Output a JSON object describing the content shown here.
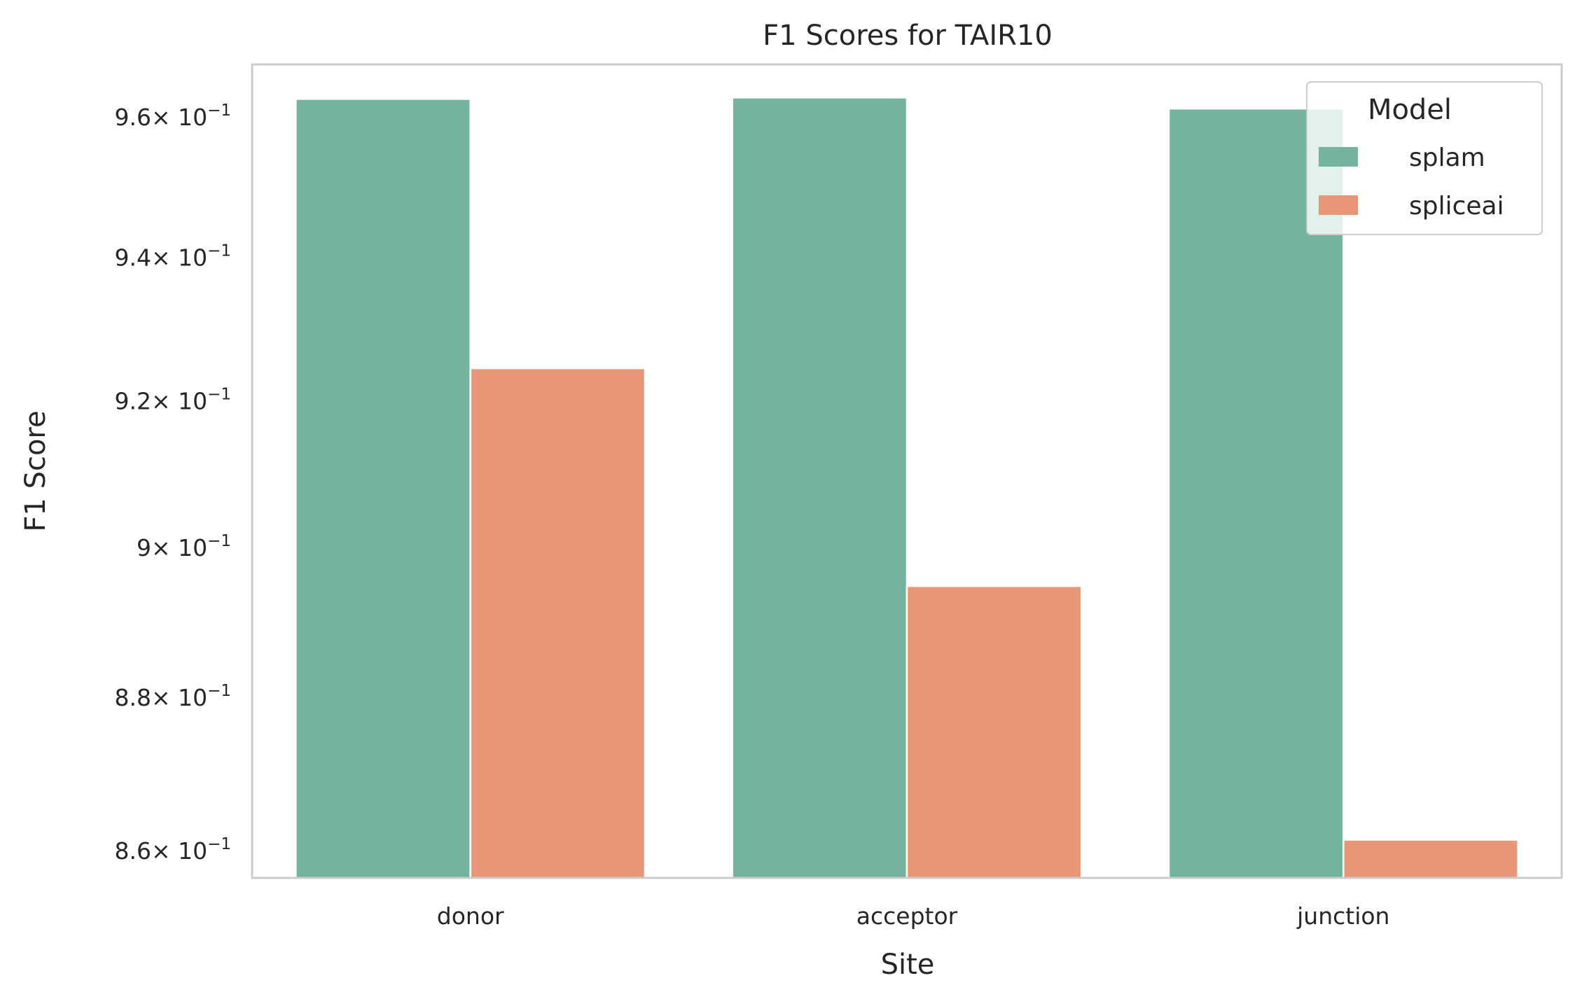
{
  "chart_data": {
    "type": "bar",
    "title": "F1 Scores for TAIR10",
    "xlabel": "Site",
    "ylabel": "F1 Score",
    "yscale": "log",
    "ylim": [
      0.8565,
      0.9676
    ],
    "grid": false,
    "categories": [
      "donor",
      "acceptor",
      "junction"
    ],
    "series": [
      {
        "name": "splam",
        "color": "#74b49f",
        "values": [
          0.9626,
          0.9628,
          0.9612
        ]
      },
      {
        "name": "spliceai",
        "color": "#e89776",
        "values": [
          0.9245,
          0.8948,
          0.8614
        ]
      }
    ],
    "y_ticks": [
      {
        "value": 0.86,
        "mantissa": "8.6"
      },
      {
        "value": 0.88,
        "mantissa": "8.8"
      },
      {
        "value": 0.9,
        "mantissa": "9"
      },
      {
        "value": 0.92,
        "mantissa": "9.2"
      },
      {
        "value": 0.94,
        "mantissa": "9.4"
      },
      {
        "value": 0.96,
        "mantissa": "9.6"
      }
    ],
    "y_tick_multiplier": "× 10",
    "y_tick_exponent": "−1",
    "legend": {
      "title": "Model",
      "position": "upper right"
    }
  }
}
